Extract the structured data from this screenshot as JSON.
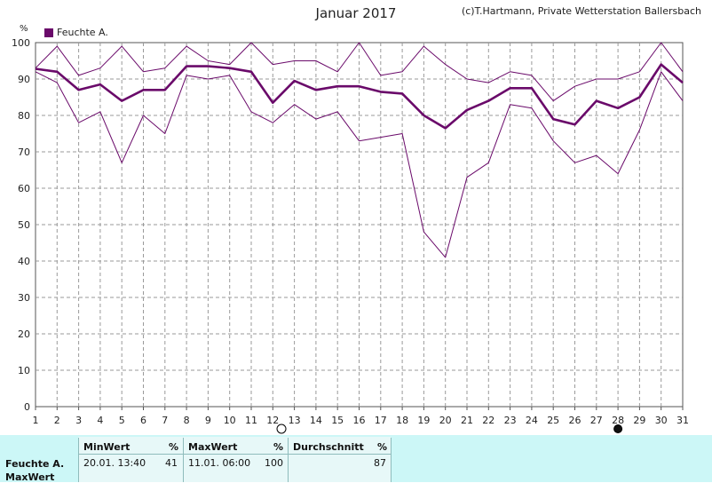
{
  "chart_data": {
    "type": "line",
    "title": "Januar 2017",
    "credit": "(c)T.Hartmann, Private Wetterstation Ballersbach",
    "ylabel": "%",
    "ylim": [
      0,
      100
    ],
    "yticks": [
      0,
      10,
      20,
      30,
      40,
      50,
      60,
      70,
      80,
      90,
      100
    ],
    "x": [
      1,
      2,
      3,
      4,
      5,
      6,
      7,
      8,
      9,
      10,
      11,
      12,
      13,
      14,
      15,
      16,
      17,
      18,
      19,
      20,
      21,
      22,
      23,
      24,
      25,
      26,
      27,
      28,
      29,
      30,
      31
    ],
    "legend": "Feuchte A.",
    "series": [
      {
        "key": "max",
        "values": [
          93,
          99,
          91,
          93,
          99,
          92,
          93,
          99,
          95,
          94,
          100,
          94,
          95,
          95,
          92,
          100,
          91,
          92,
          99,
          94,
          90,
          89,
          92,
          91,
          84,
          88,
          90,
          90,
          92,
          100,
          92
        ]
      },
      {
        "key": "avg",
        "values": [
          92.8,
          92,
          87,
          88.5,
          84,
          87,
          87,
          93.5,
          93.5,
          93,
          92,
          83.5,
          89.5,
          87,
          88,
          88,
          86.5,
          86,
          80,
          76.5,
          81.5,
          84,
          87.5,
          87.5,
          79,
          77.5,
          84,
          82,
          85,
          94,
          89
        ]
      },
      {
        "key": "min",
        "values": [
          92,
          89,
          78,
          81,
          67,
          80,
          75,
          91,
          90,
          91,
          81,
          78,
          83,
          79,
          81,
          73,
          74,
          75,
          48,
          41,
          63,
          67,
          83,
          82,
          73,
          67,
          69,
          64,
          76,
          92,
          84
        ]
      }
    ],
    "grid": true
  },
  "colors": {
    "series": "#6a0a6a",
    "grid": "#9a9a9a",
    "panel": "#ccf7f7"
  },
  "markers": {
    "new_moon_day": 12.4,
    "full_moon_day": 28
  },
  "table": {
    "row_label": "Feuchte A.",
    "row2_label": "MaxWert",
    "min_header": "MinWert",
    "min_unit": "%",
    "min_time": "20.01.  13:40",
    "min_value": "41",
    "max_header": "MaxWert",
    "max_unit": "%",
    "max_time": "11.01.  06:00",
    "max_value": "100",
    "avg_header": "Durchschnitt",
    "avg_unit": "%",
    "avg_value": "87"
  }
}
